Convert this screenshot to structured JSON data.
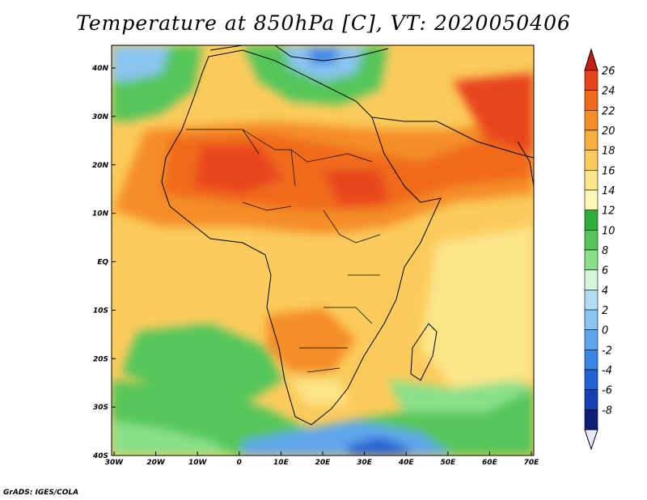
{
  "title": "Temperature at 850hPa [C], VT: 2020050406",
  "credit": "GrADS: IGES/COLA",
  "map": {
    "lon_ticks": [
      "30W",
      "20W",
      "10W",
      "0",
      "10E",
      "20E",
      "30E",
      "40E",
      "50E",
      "60E",
      "70E"
    ],
    "lat_ticks": [
      "40N",
      "30N",
      "20N",
      "10N",
      "EQ",
      "10S",
      "20S",
      "30S",
      "40S"
    ]
  },
  "colorbar": {
    "labels": [
      "26",
      "24",
      "22",
      "20",
      "18",
      "16",
      "14",
      "12",
      "10",
      "8",
      "6",
      "4",
      "2",
      "0",
      "-2",
      "-4",
      "-6",
      "-8"
    ],
    "colors": [
      "#e8441c",
      "#f06a1e",
      "#f58d26",
      "#f8ae40",
      "#fbcb5c",
      "#fde58a",
      "#fef7b6",
      "#2fae3a",
      "#55c65a",
      "#8ae08a",
      "#d6f5dc",
      "#b2dcf4",
      "#8ac4f0",
      "#5ea6ec",
      "#3a84e4",
      "#2262d4",
      "#1640b0",
      "#0c1e78"
    ],
    "top_color": "#c8200e",
    "bottom_color": "#e8e8ff"
  },
  "legend_colors": {
    "ocean_cool": "#55c65a",
    "ocean_mild": "#fbcb5c",
    "land_hot": "#e8441c",
    "land_warm": "#f8ae40",
    "med_cold": "#8ac4f0",
    "southern_cold": "#3a84e4"
  }
}
